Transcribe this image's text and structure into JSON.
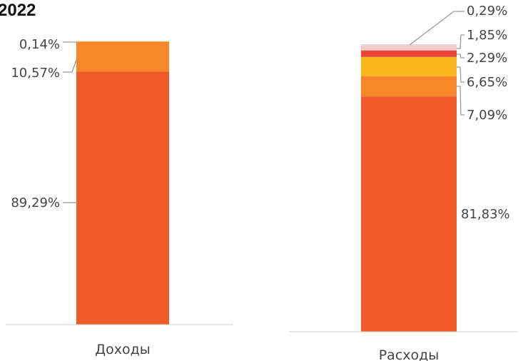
{
  "chart_data": {
    "type": "bar",
    "stacked": true,
    "percent": true,
    "title": "2022",
    "categories": [
      "Доходы",
      "Расходы"
    ],
    "stacks": [
      {
        "category": "Доходы",
        "segments": [
          {
            "value": 89.29,
            "label": "89,29%",
            "color": "#f15a29"
          },
          {
            "value": 10.57,
            "label": "10,57%",
            "color": "#f7862a"
          },
          {
            "value": 0.14,
            "label": "0,14%",
            "color": "#fbb81c"
          }
        ]
      },
      {
        "category": "Расходы",
        "segments": [
          {
            "value": 81.83,
            "label": "81,83%",
            "color": "#f15a29"
          },
          {
            "value": 7.09,
            "label": "7,09%",
            "color": "#f7862a"
          },
          {
            "value": 6.65,
            "label": "6,65%",
            "color": "#fbb81c"
          },
          {
            "value": 2.29,
            "label": "2,29%",
            "color": "#e8463a"
          },
          {
            "value": 1.85,
            "label": "1,85%",
            "color": "#f2ccc8"
          },
          {
            "value": 0.29,
            "label": "0,29%",
            "color": "#d9d9d9"
          }
        ]
      }
    ],
    "axis_color": "#cfcfcf",
    "label_color": "#444444",
    "leader_color": "#9a9a9a",
    "grid": false,
    "legend": "none"
  }
}
